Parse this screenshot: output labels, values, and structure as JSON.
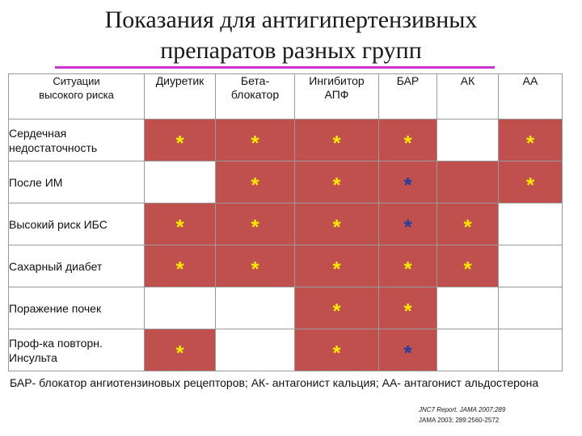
{
  "title": {
    "line1": "Показания для антигипертензивных",
    "line2": "препаратов разных групп"
  },
  "table": {
    "first_header": [
      "Ситуации",
      "высокого риска"
    ],
    "columns": [
      [
        "Диуретик"
      ],
      [
        "Бета-",
        "блокатор"
      ],
      [
        "Ингибитор",
        "АПФ"
      ],
      [
        "БАР"
      ],
      [
        "АК"
      ],
      [
        "АА"
      ]
    ],
    "rows": [
      {
        "label": [
          "Сердечная",
          "недостаточность"
        ],
        "cells": [
          {
            "filled": true,
            "mark": "*",
            "color": "yellow"
          },
          {
            "filled": true,
            "mark": "*",
            "color": "yellow"
          },
          {
            "filled": true,
            "mark": "*",
            "color": "yellow"
          },
          {
            "filled": true,
            "mark": "*",
            "color": "yellow"
          },
          {
            "filled": false,
            "mark": "",
            "color": ""
          },
          {
            "filled": true,
            "mark": "*",
            "color": "yellow"
          }
        ]
      },
      {
        "label": [
          "После ИМ"
        ],
        "cells": [
          {
            "filled": false,
            "mark": "",
            "color": ""
          },
          {
            "filled": true,
            "mark": "*",
            "color": "yellow"
          },
          {
            "filled": true,
            "mark": "*",
            "color": "yellow"
          },
          {
            "filled": true,
            "mark": "*",
            "color": "blue"
          },
          {
            "filled": true,
            "mark": "",
            "color": ""
          },
          {
            "filled": true,
            "mark": "*",
            "color": "yellow"
          }
        ]
      },
      {
        "label": [
          "Высокий риск ИБС"
        ],
        "cells": [
          {
            "filled": true,
            "mark": "*",
            "color": "yellow"
          },
          {
            "filled": true,
            "mark": "*",
            "color": "yellow"
          },
          {
            "filled": true,
            "mark": "*",
            "color": "yellow"
          },
          {
            "filled": true,
            "mark": "*",
            "color": "blue"
          },
          {
            "filled": true,
            "mark": "*",
            "color": "yellow"
          },
          {
            "filled": false,
            "mark": "",
            "color": ""
          }
        ]
      },
      {
        "label": [
          "Сахарный диабет"
        ],
        "cells": [
          {
            "filled": true,
            "mark": "*",
            "color": "yellow"
          },
          {
            "filled": true,
            "mark": "*",
            "color": "yellow"
          },
          {
            "filled": true,
            "mark": "*",
            "color": "yellow"
          },
          {
            "filled": true,
            "mark": "*",
            "color": "yellow"
          },
          {
            "filled": true,
            "mark": "*",
            "color": "yellow"
          },
          {
            "filled": false,
            "mark": "",
            "color": ""
          }
        ]
      },
      {
        "label": [
          "Поражение почек"
        ],
        "cells": [
          {
            "filled": false,
            "mark": "",
            "color": ""
          },
          {
            "filled": false,
            "mark": "",
            "color": ""
          },
          {
            "filled": true,
            "mark": "*",
            "color": "yellow"
          },
          {
            "filled": true,
            "mark": "*",
            "color": "yellow"
          },
          {
            "filled": false,
            "mark": "",
            "color": ""
          },
          {
            "filled": false,
            "mark": "",
            "color": ""
          }
        ]
      },
      {
        "label": [
          "Проф-ка повторн.",
          "Инсульта"
        ],
        "cells": [
          {
            "filled": true,
            "mark": "*",
            "color": "yellow"
          },
          {
            "filled": false,
            "mark": "",
            "color": ""
          },
          {
            "filled": true,
            "mark": "*",
            "color": "yellow"
          },
          {
            "filled": true,
            "mark": "*",
            "color": "blue"
          },
          {
            "filled": false,
            "mark": "",
            "color": ""
          },
          {
            "filled": false,
            "mark": "",
            "color": ""
          }
        ]
      }
    ]
  },
  "footnote": "БАР- блокатор ангиотензиновых рецепторов; АК- антагонист кальция; АА- антагонист альдостерона",
  "references": [
    "JNC7 Report. JAMA 2007;289",
    "JAMA 2003; 289:2560-2572"
  ],
  "colors": {
    "filled_cell": "#c0504d",
    "star_yellow": "#ffe800",
    "star_blue": "#1f3ea3",
    "title_rule": "#cc33cc"
  }
}
